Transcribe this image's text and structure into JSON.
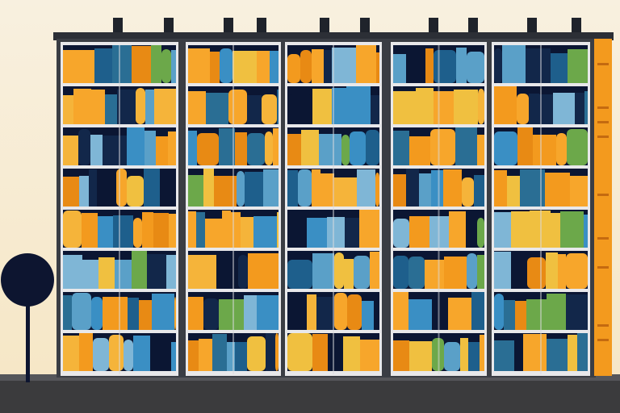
{
  "scene": {
    "colors": {
      "sky": "#f7ecd6",
      "ground": "#3b3b3d",
      "frame": "#e8e8ea",
      "roof": "#2c2f36",
      "lamp": "#0d1530",
      "accent_orange": "#f39a1e"
    },
    "palette": [
      "#f39a1e",
      "#f7a62b",
      "#0b1633",
      "#1e5f8c",
      "#3a8fc4",
      "#f5b43a",
      "#2a6e94",
      "#e88a14",
      "#5aa0c8",
      "#12274a",
      "#f0c040",
      "#7fb6d6",
      "#6ca84a"
    ],
    "panel_count": 5,
    "shelf_rows": 8
  }
}
